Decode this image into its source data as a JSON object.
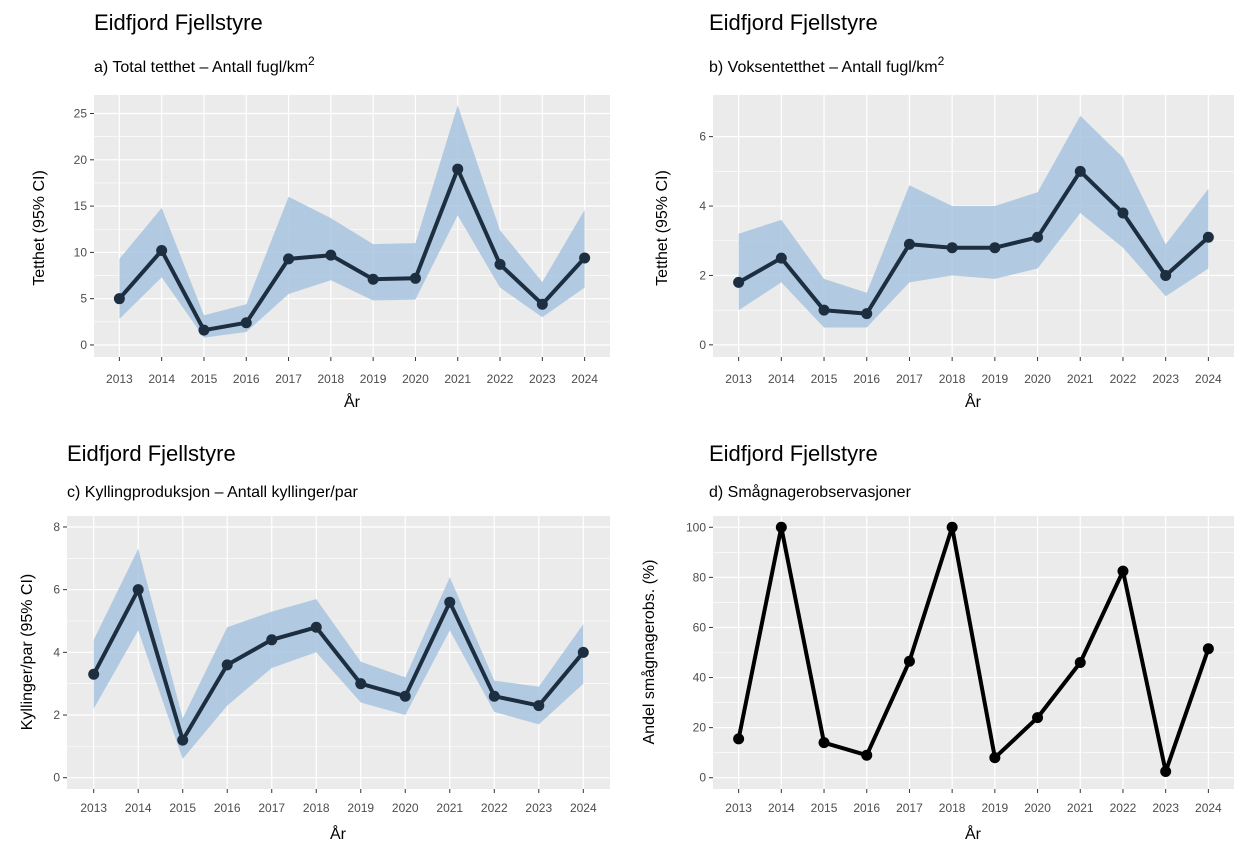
{
  "chart_data": [
    {
      "type": "line",
      "title": "Eidfjord Fjellstyre",
      "subtitle": "a) Total tetthet – Antall fugl/km",
      "subtitle_sup": "2",
      "xlabel": "År",
      "ylabel": "Tetthet (95% CI)",
      "x": [
        2013,
        2014,
        2015,
        2016,
        2017,
        2018,
        2019,
        2020,
        2021,
        2022,
        2023,
        2024
      ],
      "values": [
        5.0,
        10.2,
        1.6,
        2.4,
        9.3,
        9.7,
        7.1,
        7.2,
        19.0,
        8.7,
        4.4,
        9.4
      ],
      "lower": [
        2.8,
        7.3,
        0.8,
        1.4,
        5.5,
        7.0,
        4.8,
        4.9,
        14.0,
        6.2,
        3.0,
        6.2
      ],
      "upper": [
        9.3,
        14.8,
        3.2,
        4.4,
        16.0,
        13.7,
        10.9,
        11.0,
        25.9,
        12.4,
        6.8,
        14.6
      ],
      "yticks": [
        0,
        5,
        10,
        15,
        20,
        25
      ],
      "ylim": [
        -1.3,
        27.0
      ],
      "band": true,
      "line_color": "#1c2e40",
      "band_color": "#a8c4df",
      "grid": true
    },
    {
      "type": "line",
      "title": "Eidfjord Fjellstyre",
      "subtitle": "b) Voksentetthet – Antall fugl/km",
      "subtitle_sup": "2",
      "xlabel": "År",
      "ylabel": "Tetthet (95% CI)",
      "x": [
        2013,
        2014,
        2015,
        2016,
        2017,
        2018,
        2019,
        2020,
        2021,
        2022,
        2023,
        2024
      ],
      "values": [
        1.8,
        2.5,
        1.0,
        0.9,
        2.9,
        2.8,
        2.8,
        3.1,
        5.0,
        3.8,
        2.0,
        3.1
      ],
      "lower": [
        1.0,
        1.8,
        0.5,
        0.5,
        1.8,
        2.0,
        1.9,
        2.2,
        3.8,
        2.8,
        1.4,
        2.2
      ],
      "upper": [
        3.2,
        3.6,
        1.9,
        1.5,
        4.6,
        4.0,
        4.0,
        4.4,
        6.6,
        5.4,
        2.9,
        4.5
      ],
      "yticks": [
        0,
        2,
        4,
        6
      ],
      "ylim": [
        -0.35,
        7.2
      ],
      "band": true,
      "line_color": "#1c2e40",
      "band_color": "#a8c4df",
      "grid": true
    },
    {
      "type": "line",
      "title": "Eidfjord Fjellstyre",
      "subtitle": "c) Kyllingproduksjon – Antall kyllinger/par",
      "subtitle_sup": "",
      "xlabel": "År",
      "ylabel": "Kyllinger/par (95% CI)",
      "x": [
        2013,
        2014,
        2015,
        2016,
        2017,
        2018,
        2019,
        2020,
        2021,
        2022,
        2023,
        2024
      ],
      "values": [
        3.3,
        6.0,
        1.2,
        3.6,
        4.4,
        4.8,
        3.0,
        2.6,
        5.6,
        2.6,
        2.3,
        4.0
      ],
      "lower": [
        2.2,
        4.7,
        0.6,
        2.3,
        3.5,
        4.0,
        2.4,
        2.0,
        4.7,
        2.1,
        1.7,
        3.0
      ],
      "upper": [
        4.4,
        7.3,
        1.9,
        4.8,
        5.3,
        5.7,
        3.7,
        3.2,
        6.4,
        3.1,
        2.9,
        4.9
      ],
      "yticks": [
        0,
        2,
        4,
        6,
        8
      ],
      "ylim": [
        -0.36,
        8.35
      ],
      "band": true,
      "line_color": "#1c2e40",
      "band_color": "#a8c4df",
      "grid": true
    },
    {
      "type": "line",
      "title": "Eidfjord Fjellstyre",
      "subtitle": "d) Smågnagerobservasjoner",
      "subtitle_sup": "",
      "xlabel": "År",
      "ylabel": "Andel smågnagerobs. (%)",
      "x": [
        2013,
        2014,
        2015,
        2016,
        2017,
        2018,
        2019,
        2020,
        2021,
        2022,
        2023,
        2024
      ],
      "values": [
        15.5,
        100,
        14,
        9,
        46.5,
        100,
        8,
        24,
        46,
        82.5,
        2.5,
        51.5
      ],
      "yticks": [
        0,
        20,
        40,
        60,
        80,
        100
      ],
      "ylim": [
        -4.5,
        104.5
      ],
      "band": false,
      "line_color": "#000000",
      "grid": true
    }
  ]
}
